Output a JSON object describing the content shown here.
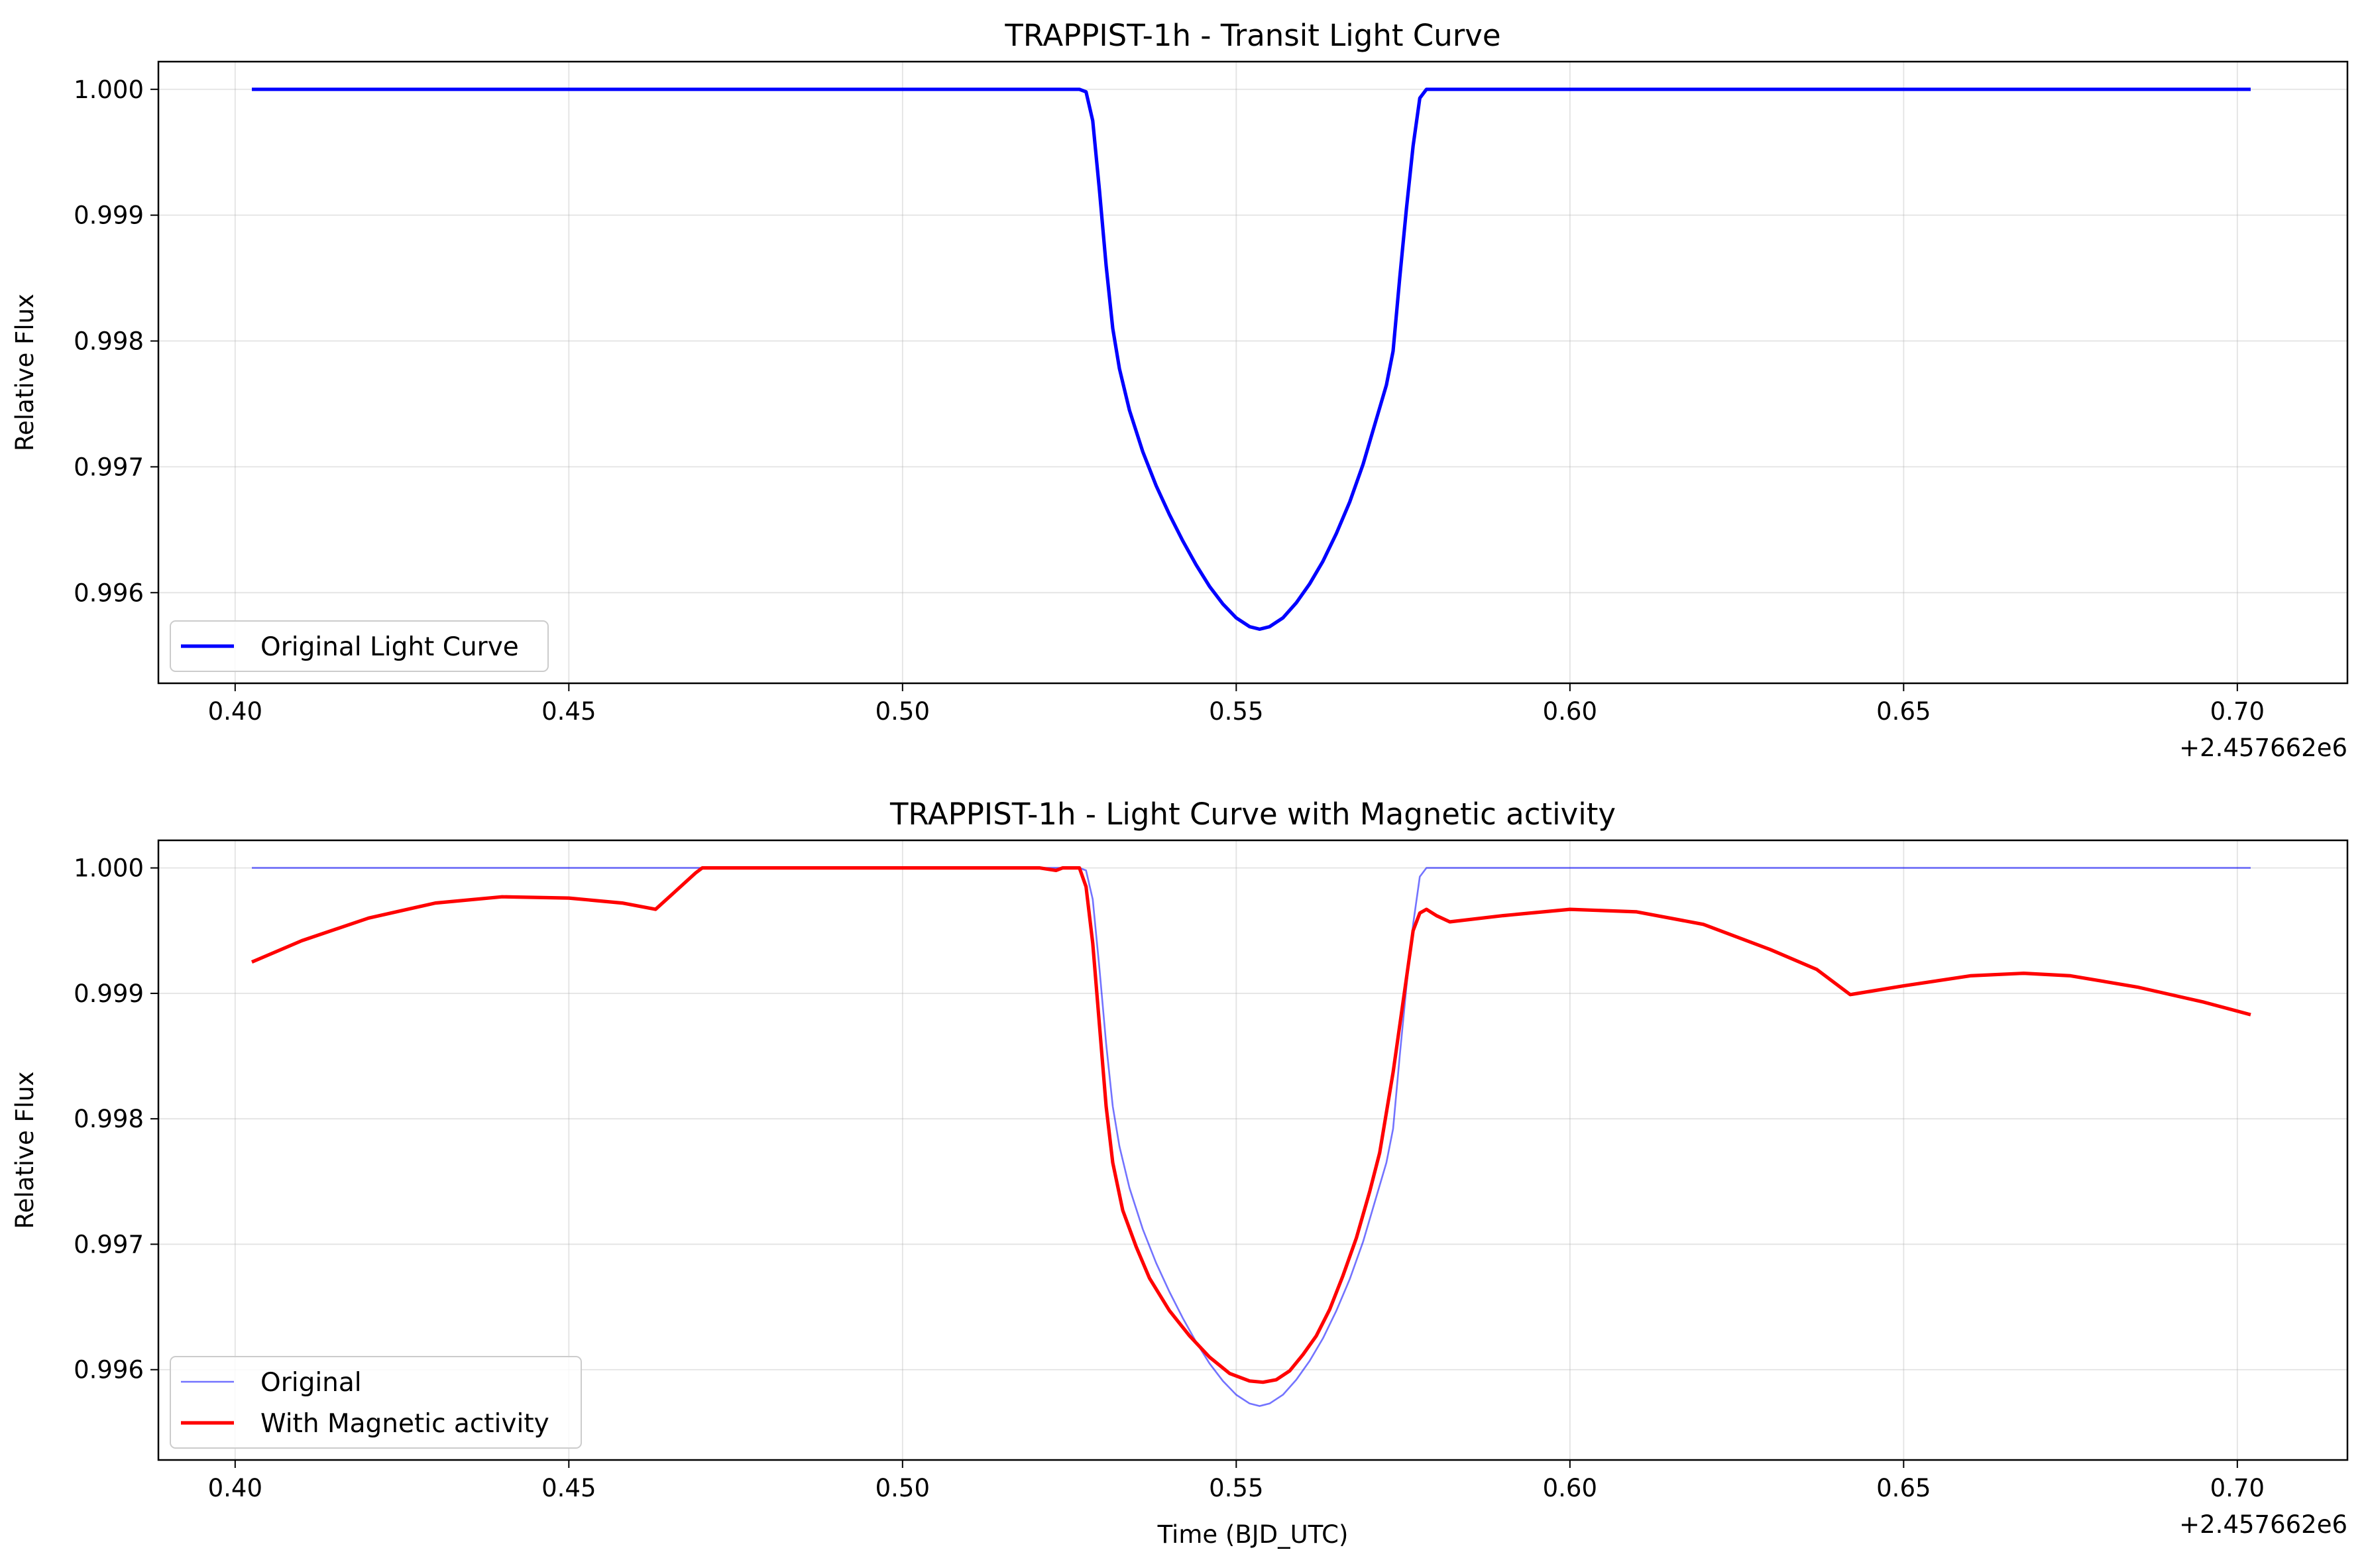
{
  "chart_data": [
    {
      "type": "line",
      "title": "TRAPPIST-1h - Transit Light Curve",
      "xlabel": "",
      "ylabel": "Relative Flux",
      "x_offset_label": "+2.457662e6",
      "xlim": [
        0.3885,
        0.7165
      ],
      "ylim": [
        0.99528,
        1.00022
      ],
      "xticks": [
        0.4,
        0.45,
        0.5,
        0.55,
        0.6,
        0.65,
        0.7
      ],
      "xtick_labels": [
        "0.40",
        "0.45",
        "0.50",
        "0.55",
        "0.60",
        "0.65",
        "0.70"
      ],
      "yticks": [
        0.996,
        0.997,
        0.998,
        0.999,
        1.0
      ],
      "ytick_labels": [
        "0.996",
        "0.997",
        "0.998",
        "0.999",
        "1.000"
      ],
      "grid": true,
      "legend_position": "lower-left",
      "series": [
        {
          "name": "Original Light Curve",
          "color": "#0000ff",
          "width": 2.0,
          "opacity": 1.0,
          "points": [
            [
              0.4025,
              1.0
            ],
            [
              0.5265,
              1.0
            ],
            [
              0.5275,
              0.99998
            ],
            [
              0.5285,
              0.99975
            ],
            [
              0.5295,
              0.9992
            ],
            [
              0.5305,
              0.9986
            ],
            [
              0.5315,
              0.9981
            ],
            [
              0.5325,
              0.99778
            ],
            [
              0.534,
              0.99745
            ],
            [
              0.536,
              0.99712
            ],
            [
              0.538,
              0.99685
            ],
            [
              0.54,
              0.99662
            ],
            [
              0.542,
              0.99641
            ],
            [
              0.544,
              0.99622
            ],
            [
              0.546,
              0.99605
            ],
            [
              0.548,
              0.99591
            ],
            [
              0.55,
              0.9958
            ],
            [
              0.552,
              0.99573
            ],
            [
              0.5535,
              0.99571
            ],
            [
              0.555,
              0.99573
            ],
            [
              0.557,
              0.9958
            ],
            [
              0.559,
              0.99592
            ],
            [
              0.561,
              0.99607
            ],
            [
              0.563,
              0.99625
            ],
            [
              0.565,
              0.99647
            ],
            [
              0.567,
              0.99672
            ],
            [
              0.569,
              0.99702
            ],
            [
              0.571,
              0.99738
            ],
            [
              0.5725,
              0.99765
            ],
            [
              0.5735,
              0.99792
            ],
            [
              0.5745,
              0.9985
            ],
            [
              0.5755,
              0.99905
            ],
            [
              0.5765,
              0.99955
            ],
            [
              0.5775,
              0.99993
            ],
            [
              0.5785,
              1.0
            ],
            [
              0.702,
              1.0
            ]
          ]
        }
      ]
    },
    {
      "type": "line",
      "title": "TRAPPIST-1h - Light Curve with Magnetic activity",
      "xlabel": "Time (BJD_UTC)",
      "ylabel": "Relative Flux",
      "x_offset_label": "+2.457662e6",
      "xlim": [
        0.3885,
        0.7165
      ],
      "ylim": [
        0.99528,
        1.00022
      ],
      "xticks": [
        0.4,
        0.45,
        0.5,
        0.55,
        0.6,
        0.65,
        0.7
      ],
      "xtick_labels": [
        "0.40",
        "0.45",
        "0.50",
        "0.55",
        "0.60",
        "0.65",
        "0.70"
      ],
      "yticks": [
        0.996,
        0.997,
        0.998,
        0.999,
        1.0
      ],
      "ytick_labels": [
        "0.996",
        "0.997",
        "0.998",
        "0.999",
        "1.000"
      ],
      "grid": true,
      "legend_position": "lower-left",
      "series": [
        {
          "name": "Original",
          "color": "#0000ff",
          "width": 1.0,
          "opacity": 0.55,
          "points": [
            [
              0.4025,
              1.0
            ],
            [
              0.5265,
              1.0
            ],
            [
              0.5275,
              0.99998
            ],
            [
              0.5285,
              0.99975
            ],
            [
              0.5295,
              0.9992
            ],
            [
              0.5305,
              0.9986
            ],
            [
              0.5315,
              0.9981
            ],
            [
              0.5325,
              0.99778
            ],
            [
              0.534,
              0.99745
            ],
            [
              0.536,
              0.99712
            ],
            [
              0.538,
              0.99685
            ],
            [
              0.54,
              0.99662
            ],
            [
              0.542,
              0.99641
            ],
            [
              0.544,
              0.99622
            ],
            [
              0.546,
              0.99605
            ],
            [
              0.548,
              0.99591
            ],
            [
              0.55,
              0.9958
            ],
            [
              0.552,
              0.99573
            ],
            [
              0.5535,
              0.99571
            ],
            [
              0.555,
              0.99573
            ],
            [
              0.557,
              0.9958
            ],
            [
              0.559,
              0.99592
            ],
            [
              0.561,
              0.99607
            ],
            [
              0.563,
              0.99625
            ],
            [
              0.565,
              0.99647
            ],
            [
              0.567,
              0.99672
            ],
            [
              0.569,
              0.99702
            ],
            [
              0.571,
              0.99738
            ],
            [
              0.5725,
              0.99765
            ],
            [
              0.5735,
              0.99792
            ],
            [
              0.5745,
              0.9985
            ],
            [
              0.5755,
              0.99905
            ],
            [
              0.5765,
              0.99955
            ],
            [
              0.5775,
              0.99993
            ],
            [
              0.5785,
              1.0
            ],
            [
              0.702,
              1.0
            ]
          ]
        },
        {
          "name": "With Magnetic activity",
          "color": "#ff0000",
          "width": 2.0,
          "opacity": 1.0,
          "points": [
            [
              0.4025,
              0.99925
            ],
            [
              0.41,
              0.99942
            ],
            [
              0.42,
              0.9996
            ],
            [
              0.43,
              0.99972
            ],
            [
              0.44,
              0.99977
            ],
            [
              0.45,
              0.99976
            ],
            [
              0.458,
              0.99972
            ],
            [
              0.463,
              0.99967
            ],
            [
              0.469,
              0.99996
            ],
            [
              0.47,
              1.0
            ],
            [
              0.5205,
              1.0
            ],
            [
              0.523,
              0.99998
            ],
            [
              0.524,
              1.0
            ],
            [
              0.5265,
              1.0
            ],
            [
              0.5275,
              0.99985
            ],
            [
              0.5285,
              0.9994
            ],
            [
              0.5295,
              0.99875
            ],
            [
              0.5305,
              0.9981
            ],
            [
              0.5315,
              0.99765
            ],
            [
              0.533,
              0.99727
            ],
            [
              0.535,
              0.99698
            ],
            [
              0.537,
              0.99673
            ],
            [
              0.54,
              0.99647
            ],
            [
              0.543,
              0.99627
            ],
            [
              0.546,
              0.9961
            ],
            [
              0.549,
              0.99597
            ],
            [
              0.552,
              0.99591
            ],
            [
              0.554,
              0.9959
            ],
            [
              0.556,
              0.99592
            ],
            [
              0.558,
              0.99599
            ],
            [
              0.56,
              0.99612
            ],
            [
              0.562,
              0.99627
            ],
            [
              0.564,
              0.99648
            ],
            [
              0.566,
              0.99675
            ],
            [
              0.568,
              0.99705
            ],
            [
              0.57,
              0.99742
            ],
            [
              0.5715,
              0.99773
            ],
            [
              0.5735,
              0.99837
            ],
            [
              0.5755,
              0.99912
            ],
            [
              0.5765,
              0.9995
            ],
            [
              0.5775,
              0.99964
            ],
            [
              0.5785,
              0.99967
            ],
            [
              0.58,
              0.99962
            ],
            [
              0.582,
              0.99957
            ],
            [
              0.59,
              0.99962
            ],
            [
              0.6,
              0.99967
            ],
            [
              0.61,
              0.99965
            ],
            [
              0.62,
              0.99955
            ],
            [
              0.63,
              0.99935
            ],
            [
              0.637,
              0.99919
            ],
            [
              0.642,
              0.99899
            ],
            [
              0.65,
              0.99906
            ],
            [
              0.66,
              0.99914
            ],
            [
              0.668,
              0.99916
            ],
            [
              0.675,
              0.99914
            ],
            [
              0.685,
              0.99905
            ],
            [
              0.695,
              0.99893
            ],
            [
              0.702,
              0.99883
            ]
          ]
        }
      ]
    }
  ]
}
